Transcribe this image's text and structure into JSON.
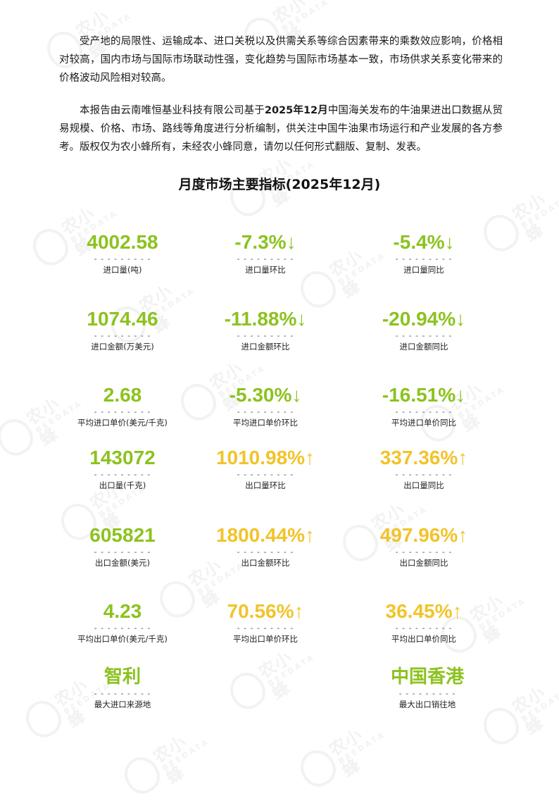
{
  "paragraphs": {
    "p1": "受产地的局限性、运输成本、进口关税以及供需关系等综合因素带来的乘数效应影响，价格相对较高，国内市场与国际市场联动性强，变化趋势与国际市场基本一致，市场供求关系变化带来的价格波动风险相对较高。",
    "p2_a": "本报告由云南唯恒基业科技有限公司基于",
    "p2_bold": "2025年12月",
    "p2_b": "中国海关发布的牛油果进出口数据从贸易规模、价格、市场、路线等角度进行分析编制，供关注中国牛油果市场运行和产业发展的各方参考。版权仅为农小蜂所有，未经农小蜂同意，请勿以任何形式翻版、复制、发表。"
  },
  "section_title": "月度市场主要指标(2025年12月)",
  "dash": "- - - - - - - - -",
  "watermark": {
    "brand": "农小蜂",
    "sub": "BEEDATA"
  },
  "colors": {
    "green": "#8cc21f",
    "yellow": "#f2c32a"
  },
  "metrics": [
    {
      "value": "4002.58",
      "label": "进口量(吨)"
    },
    {
      "value": "-7.3%↓",
      "label": "进口量环比"
    },
    {
      "value": "-5.4%↓",
      "label": "进口量同比"
    },
    {
      "value": "1074.46",
      "label": "进口金额(万美元)"
    },
    {
      "value": "-11.88%↓",
      "label": "进口金额环比"
    },
    {
      "value": "-20.94%↓",
      "label": "进口金额同比"
    },
    {
      "value": "2.68",
      "label": "平均进口单价(美元/千克)"
    },
    {
      "value": "-5.30%↓",
      "label": "平均进口单价环比"
    },
    {
      "value": "-16.51%↓",
      "label": "平均进口单价同比"
    },
    {
      "value": "143072",
      "label": "出口量(千克)"
    },
    {
      "value": "1010.98%↑",
      "label": "出口量环比"
    },
    {
      "value": "337.36%↑",
      "label": "出口量同比"
    },
    {
      "value": "605821",
      "label": "出口金额(美元)"
    },
    {
      "value": "1800.44%↑",
      "label": "出口金额环比"
    },
    {
      "value": "497.96%↑",
      "label": "出口金额同比"
    },
    {
      "value": "4.23",
      "label": "平均出口单价(美元/千克)"
    },
    {
      "value": "70.56%↑",
      "label": "平均出口单价环比"
    },
    {
      "value": "36.45%↑",
      "label": "平均出口单价同比"
    },
    {
      "value": "智利",
      "label": "最大进口来源地"
    },
    {
      "value": "中国香港",
      "label": "最大出口销往地"
    }
  ]
}
